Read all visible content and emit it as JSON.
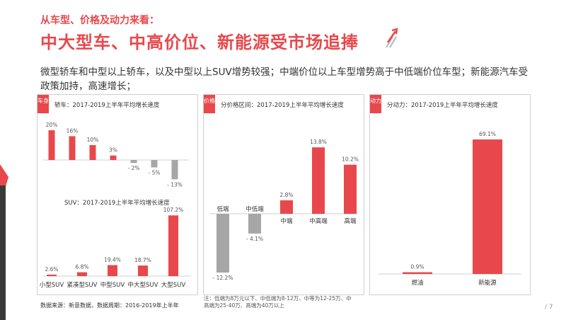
{
  "header": {
    "kicker": "从车型、价格及动力来看：",
    "headline": "中大型车、中高价位、新能源受市场追捧",
    "lead": "微型轿车和中型以上轿车，以及中型以上SUV增势较强；中端价位以上车型增势高于中低端价位车型；新能源汽车受政策加持，高速增长；"
  },
  "panels": [
    {
      "tag": "车身",
      "title": "轿车：2017-2019上半年平均增长速度",
      "sub_title": "SUV：2017-2019上半年平均增长速度"
    },
    {
      "tag": "价格",
      "title": "分价格区间：2017-2019上半年平均增长速度"
    },
    {
      "tag": "动力",
      "title": "分动力：2017-2019上半年平均增长速度"
    }
  ],
  "footer": {
    "source": "数据来源：新意数据，数据周期：2016-2019年上半年",
    "note": "注：低端为8万元以下、中低端为8-12万、中等为12-25万、中高端为25-40万、高端为40万以上",
    "page_number": "/ 7"
  },
  "colors": {
    "accent": "#e8484b",
    "negative": "#a6a6a6",
    "text": "#333333"
  },
  "chart_data": [
    {
      "type": "bar",
      "title": "轿车：2017-2019上半年平均增长速度",
      "values": [
        20,
        16,
        10,
        3,
        -2,
        -5,
        -13
      ],
      "labels": [
        "20%",
        "16%",
        "10%",
        "3%",
        "- 2%",
        "- 5%",
        "- 13%"
      ]
    },
    {
      "type": "bar",
      "title": "SUV：2017-2019上半年平均增长速度",
      "categories": [
        "小型SUV",
        "紧凑型SUV",
        "中型SUV",
        "中大型SUV",
        "大型SUV"
      ],
      "values": [
        2.6,
        6.8,
        19.4,
        18.7,
        107.2
      ],
      "labels": [
        "2.6%",
        "6.8%",
        "19.4%",
        "18.7%",
        "107.2%"
      ]
    },
    {
      "type": "bar",
      "title": "分价格区间：2017-2019上半年平均增长速度",
      "categories": [
        "低端",
        "中低端",
        "中端",
        "中高端",
        "高端"
      ],
      "values": [
        -12.2,
        -4.1,
        2.8,
        13.8,
        10.2
      ],
      "labels": [
        "- 12.2%",
        "- 4.1%",
        "2.8%",
        "13.8%",
        "10.2%"
      ]
    },
    {
      "type": "bar",
      "title": "分动力：2017-2019上半年平均增长速度",
      "categories": [
        "燃油",
        "新能源"
      ],
      "values": [
        0.9,
        69.1
      ],
      "labels": [
        "0.9%",
        "69.1%"
      ]
    }
  ]
}
